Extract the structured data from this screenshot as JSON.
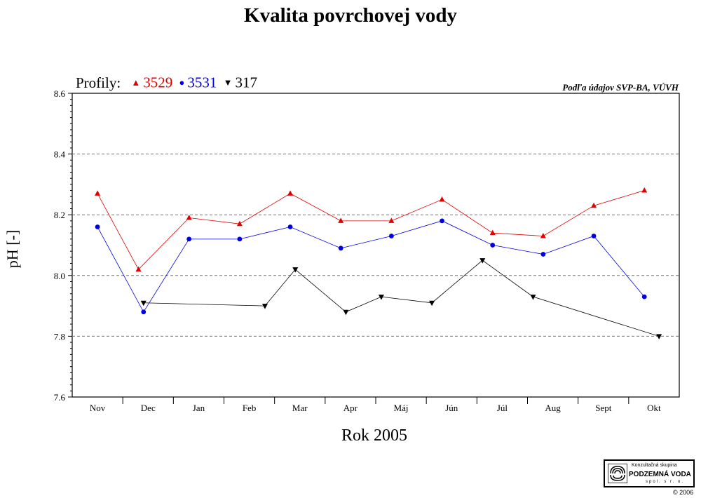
{
  "title": "Kvalita povrchovej vody",
  "source_note": "Podľa údajov SVP-BA, VÚVH",
  "legend": {
    "label": "Profily:",
    "items": [
      {
        "name": "3529",
        "symbol": "▲",
        "color": "#e00000"
      },
      {
        "name": "3531",
        "symbol": "●",
        "color": "#0000e0"
      },
      {
        "name": "317",
        "symbol": "▼",
        "color": "#000000"
      }
    ]
  },
  "logo": {
    "line1": "Konzultačná skupina",
    "line2": "PODZEMNÁ VODA",
    "line3": "spol. s r. o.",
    "copyright": "© 2006"
  },
  "chart_data": {
    "type": "line",
    "title": "Kvalita povrchovej vody",
    "xlabel": "Rok 2005",
    "ylabel": "pH [-]",
    "ylim": [
      7.6,
      8.6
    ],
    "yticks": [
      "7.6",
      "7.8",
      "8.0",
      "8.2",
      "8.4",
      "8.6"
    ],
    "grid": "horizontal dashed",
    "legend_position": "top-left",
    "categories": [
      "Nov",
      "Dec",
      "Jan",
      "Feb",
      "Mar",
      "Apr",
      "Máj",
      "Jún",
      "Júl",
      "Aug",
      "Sept",
      "Okt"
    ],
    "series": [
      {
        "name": "3529",
        "color": "#e00000",
        "marker": "triangle-up",
        "points": [
          {
            "x": 0.0,
            "y": 8.27
          },
          {
            "x": 0.81,
            "y": 8.02
          },
          {
            "x": 1.81,
            "y": 8.19
          },
          {
            "x": 2.81,
            "y": 8.17
          },
          {
            "x": 3.81,
            "y": 8.27
          },
          {
            "x": 4.81,
            "y": 8.18
          },
          {
            "x": 5.81,
            "y": 8.18
          },
          {
            "x": 6.81,
            "y": 8.25
          },
          {
            "x": 7.81,
            "y": 8.14
          },
          {
            "x": 8.81,
            "y": 8.13
          },
          {
            "x": 9.81,
            "y": 8.23
          },
          {
            "x": 10.81,
            "y": 8.28
          }
        ]
      },
      {
        "name": "3531",
        "color": "#0000e0",
        "marker": "circle",
        "points": [
          {
            "x": 0.0,
            "y": 8.16
          },
          {
            "x": 0.91,
            "y": 7.88
          },
          {
            "x": 1.81,
            "y": 8.12
          },
          {
            "x": 2.81,
            "y": 8.12
          },
          {
            "x": 3.81,
            "y": 8.16
          },
          {
            "x": 4.81,
            "y": 8.09
          },
          {
            "x": 5.81,
            "y": 8.13
          },
          {
            "x": 6.81,
            "y": 8.18
          },
          {
            "x": 7.81,
            "y": 8.1
          },
          {
            "x": 8.81,
            "y": 8.07
          },
          {
            "x": 9.81,
            "y": 8.13
          },
          {
            "x": 10.81,
            "y": 7.93
          }
        ]
      },
      {
        "name": "317",
        "color": "#000000",
        "marker": "triangle-down",
        "points": [
          {
            "x": 0.91,
            "y": 7.91
          },
          {
            "x": 3.31,
            "y": 7.9
          },
          {
            "x": 3.91,
            "y": 8.02
          },
          {
            "x": 4.91,
            "y": 7.88
          },
          {
            "x": 5.61,
            "y": 7.93
          },
          {
            "x": 6.61,
            "y": 7.91
          },
          {
            "x": 7.61,
            "y": 8.05
          },
          {
            "x": 8.61,
            "y": 7.93
          },
          {
            "x": 11.1,
            "y": 7.8
          }
        ]
      }
    ]
  }
}
